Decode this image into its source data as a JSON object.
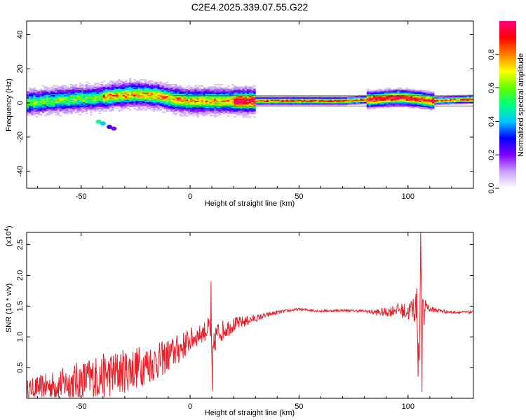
{
  "title": "C2E4.2025.339.07.55.G22",
  "chart_data": [
    {
      "type": "heatmap",
      "name": "spectrogram",
      "xlabel": "Height of straight line (km)",
      "ylabel": "Frequency (Hz)",
      "xlim": [
        -75,
        130
      ],
      "ylim": [
        -50,
        48
      ],
      "xticks": [
        -50,
        0,
        50,
        100
      ],
      "yticks": [
        -40,
        -20,
        0,
        20,
        40
      ],
      "colorbar": {
        "label": "Normalized spectral amplitude",
        "range": [
          0,
          1
        ],
        "ticks": [
          "0.0",
          "0.2",
          "0.4",
          "0.6",
          "0.8"
        ],
        "colors": [
          "#ffffff",
          "#c8a0ff",
          "#8000ff",
          "#0000ff",
          "#00c8ff",
          "#00ff80",
          "#60ff00",
          "#ffff00",
          "#ff8000",
          "#ff0000",
          "#ff0080"
        ]
      },
      "ridge": {
        "x": [
          -75,
          -65,
          -55,
          -45,
          -35,
          -25,
          -15,
          -8,
          0,
          10,
          20,
          30,
          50,
          70,
          85,
          95,
          105,
          110,
          130
        ],
        "freq": [
          0,
          1,
          2,
          2.5,
          4,
          5,
          4,
          2,
          1,
          1,
          1,
          1,
          1,
          1,
          2,
          3,
          2,
          1,
          2
        ]
      }
    },
    {
      "type": "line",
      "name": "snr",
      "xlabel": "Height of straight line (km)",
      "ylabel": "SNR (10 * v/v)",
      "y_multiplier": "(x10",
      "y_multiplier_exp": "4",
      "xlim": [
        -75,
        130
      ],
      "ylim": [
        0,
        2.7
      ],
      "xticks": [
        -50,
        0,
        50,
        100
      ],
      "yticks": [
        "0.5",
        "1.0",
        "1.5",
        "2.0",
        "2.5"
      ],
      "line_color": "#e8202a",
      "x": [
        -75,
        -65,
        -55,
        -45,
        -35,
        -25,
        -15,
        -5,
        0,
        5,
        9,
        10,
        12,
        20,
        30,
        40,
        50,
        60,
        70,
        80,
        85,
        90,
        95,
        100,
        104,
        105,
        106,
        107,
        108,
        110,
        120,
        130
      ],
      "mean": [
        0.15,
        0.2,
        0.25,
        0.33,
        0.4,
        0.5,
        0.6,
        0.8,
        0.95,
        1.05,
        1.15,
        0.6,
        1.05,
        1.2,
        1.3,
        1.4,
        1.45,
        1.42,
        1.43,
        1.42,
        1.4,
        1.4,
        1.45,
        1.4,
        1.5,
        0.8,
        2.2,
        1.2,
        1.55,
        1.45,
        1.4,
        1.4
      ],
      "amp": [
        0.15,
        0.22,
        0.3,
        0.35,
        0.38,
        0.35,
        0.3,
        0.25,
        0.2,
        0.15,
        0.2,
        0.3,
        0.2,
        0.12,
        0.06,
        0.03,
        0.02,
        0.02,
        0.02,
        0.02,
        0.05,
        0.08,
        0.1,
        0.15,
        0.3,
        0.5,
        0.4,
        0.4,
        0.1,
        0.05,
        0.02,
        0.02
      ],
      "spikes": [
        {
          "x": 9.5,
          "y": 1.9
        },
        {
          "x": 10.2,
          "y": 0.12
        },
        {
          "x": 105.8,
          "y": 2.7
        },
        {
          "x": 106.4,
          "y": 0.1
        },
        {
          "x": 104.5,
          "y": 0.35
        }
      ]
    }
  ]
}
